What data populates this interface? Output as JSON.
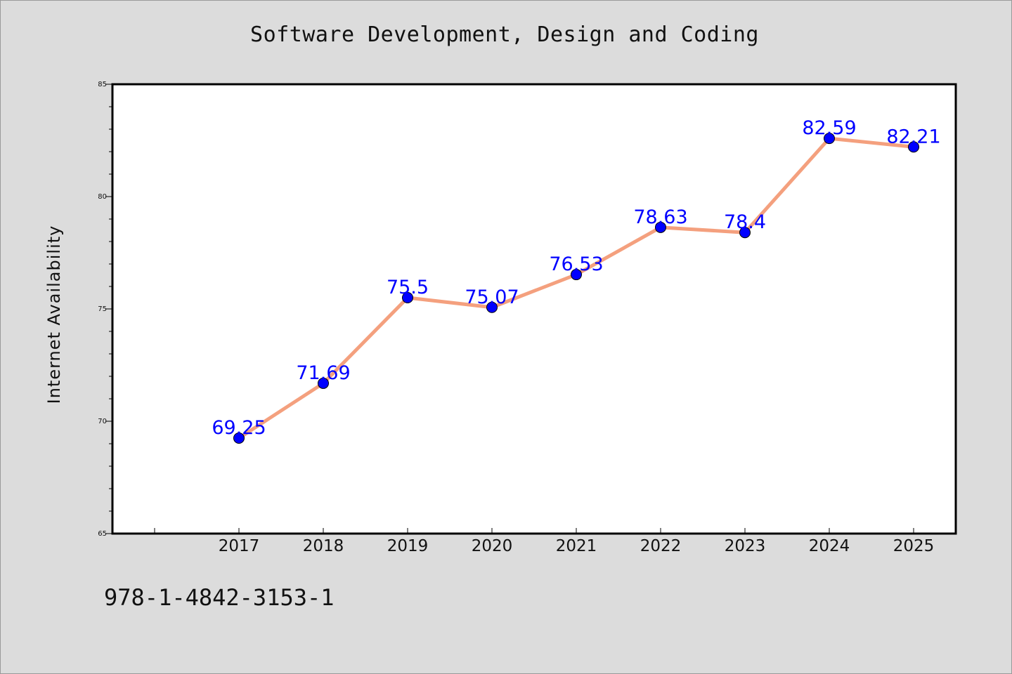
{
  "isbn_text": "978-1-4842-3153-1",
  "chart_data": {
    "type": "line",
    "title": "Software Development, Design and Coding",
    "xlabel": "",
    "ylabel": "Internet Availability",
    "categories": [
      "2017",
      "2018",
      "2019",
      "2020",
      "2021",
      "2022",
      "2023",
      "2024",
      "2025"
    ],
    "series": [
      {
        "values": [
          69.25,
          71.69,
          75.5,
          75.07,
          76.53,
          78.63,
          78.4,
          82.59,
          82.21
        ],
        "data_labels": [
          "69.25",
          "71.69",
          "75.5",
          "75.07",
          "76.53",
          "78.63",
          "78.4",
          "82.59",
          "82.21"
        ],
        "line_color": "#f4a07e",
        "marker_color": "#0000ff",
        "label_color": "#0000ff"
      }
    ],
    "ylim": [
      65,
      85
    ],
    "yticks": [
      "65",
      "70",
      "75",
      "80",
      "85"
    ],
    "y_minor_step": 1,
    "grid": false,
    "plot_background": "#ffffff",
    "page_background": "#dcdcdc"
  }
}
